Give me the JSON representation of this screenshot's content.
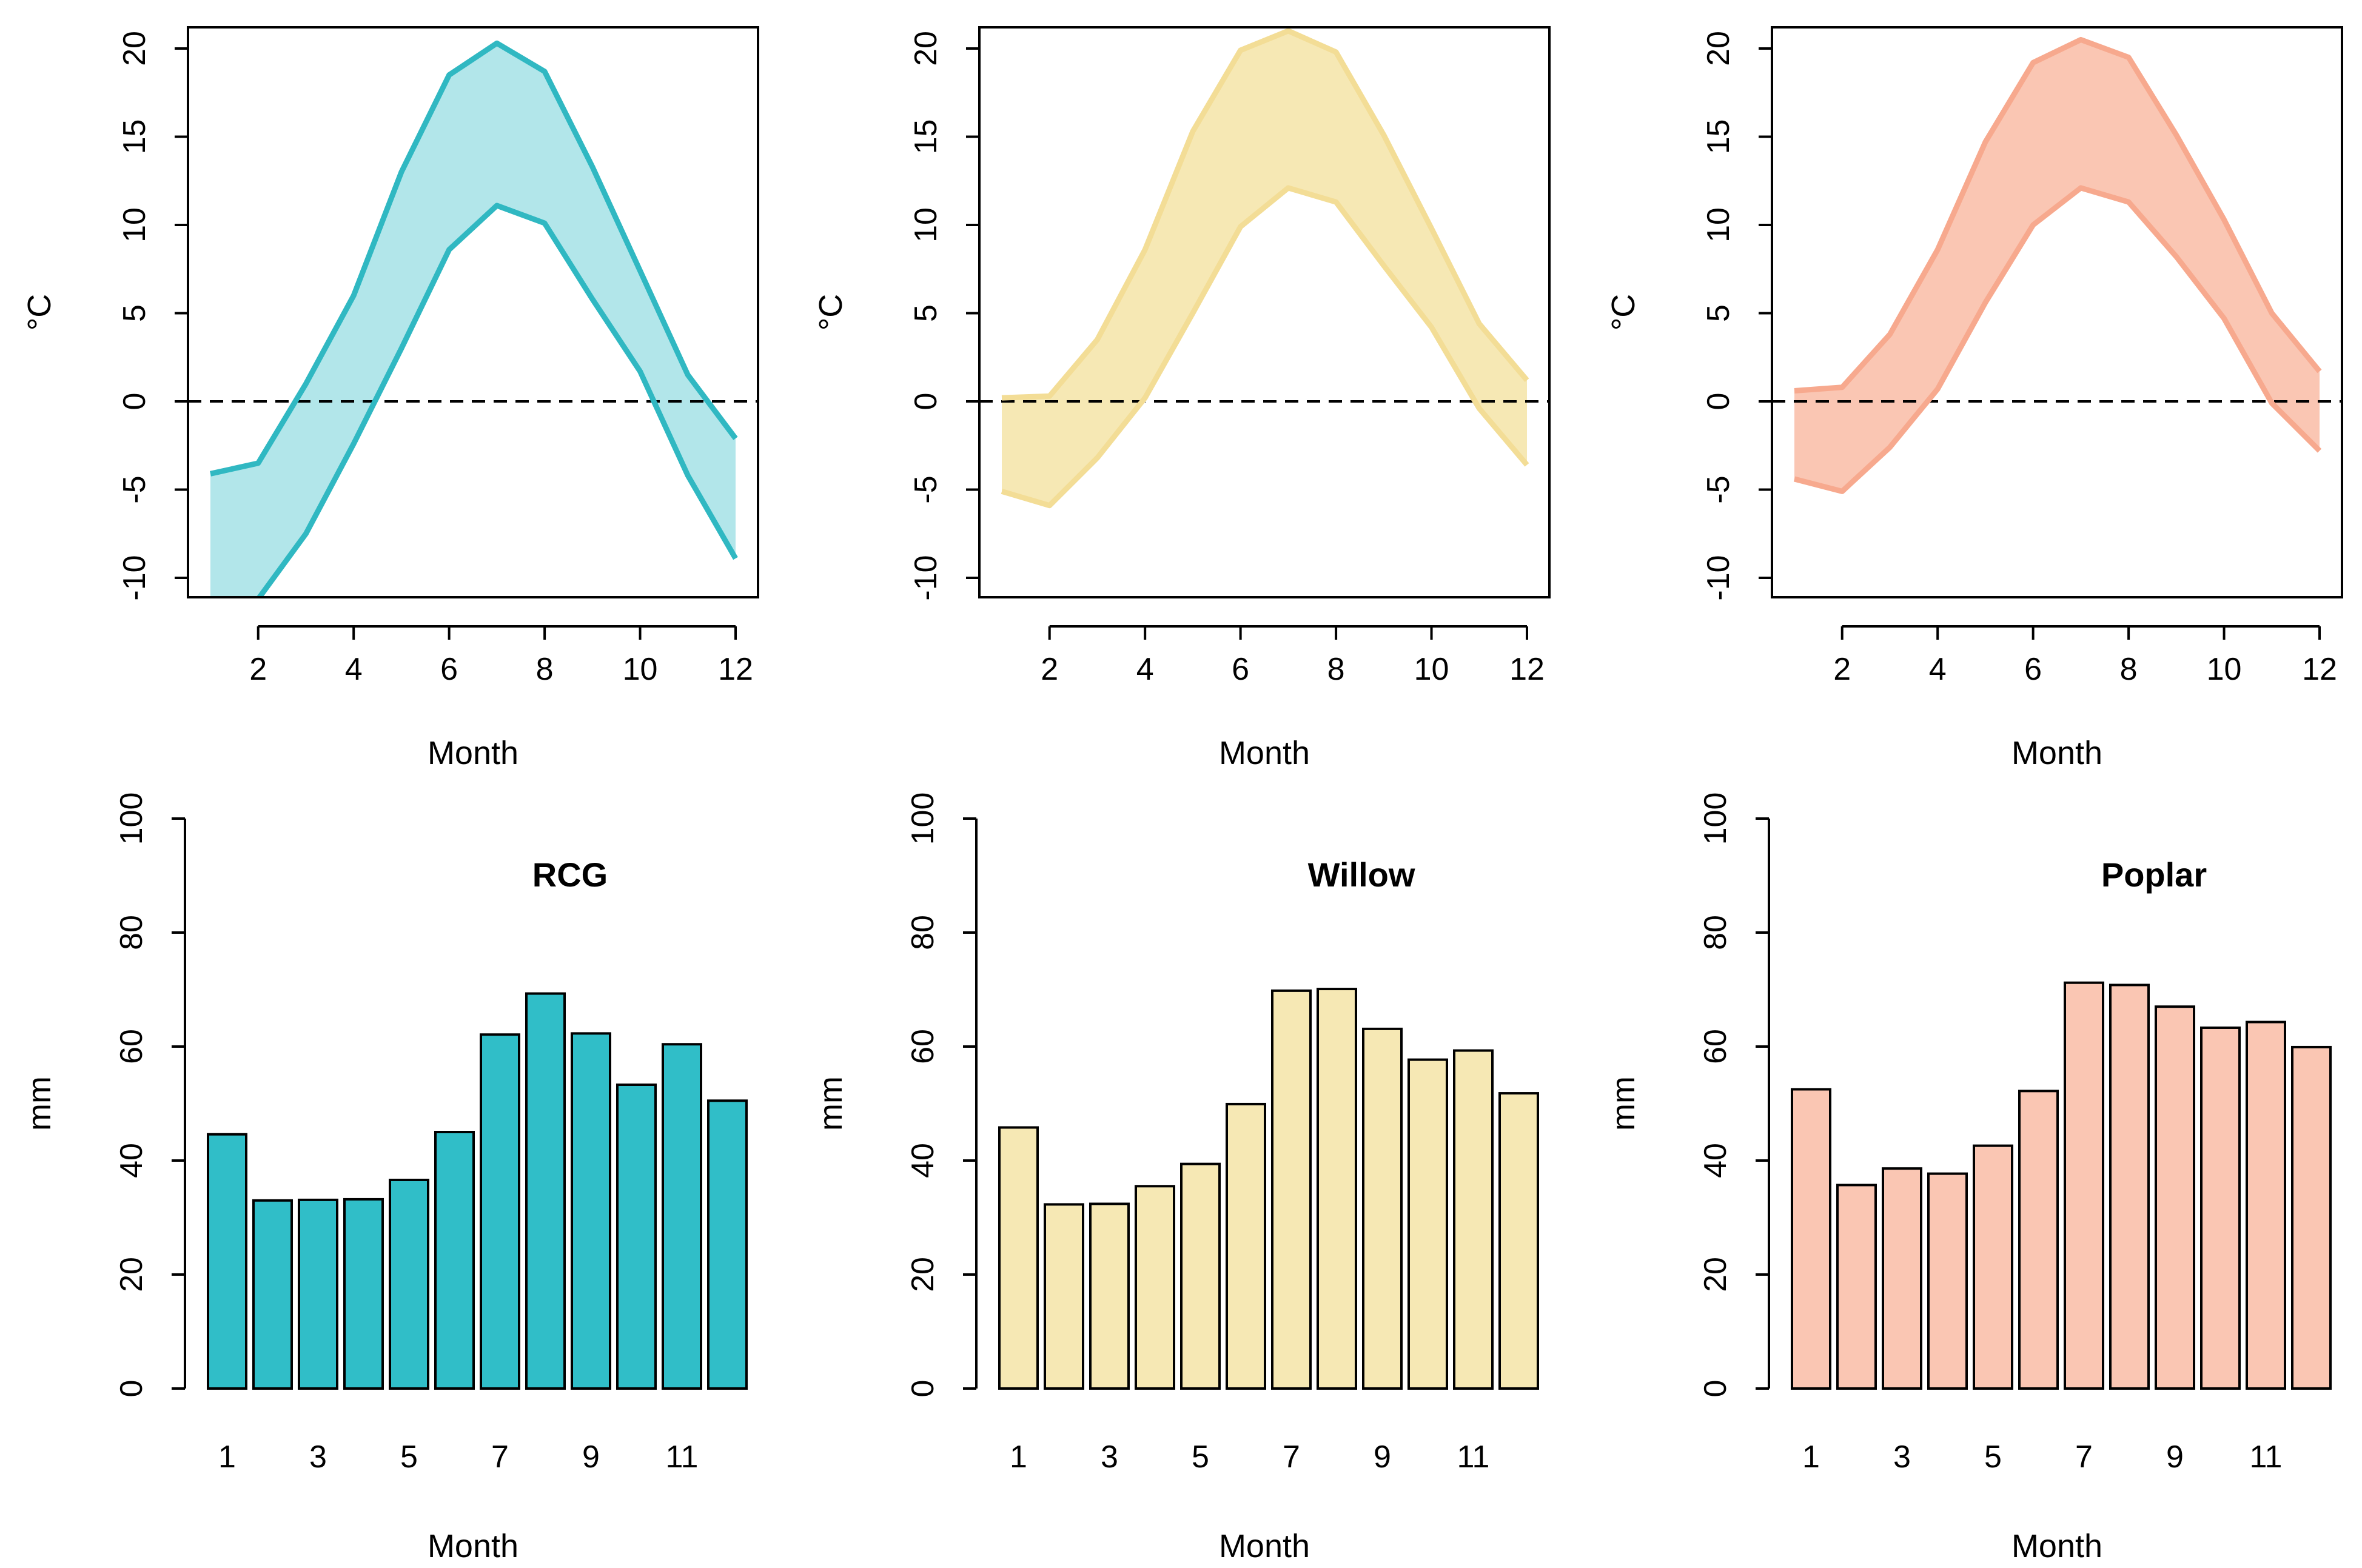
{
  "chart_data": [
    {
      "type": "area",
      "ylabel": "°C",
      "xlabel": "Month",
      "xlim": [
        1,
        12
      ],
      "ylim": [
        -10,
        20
      ],
      "x_ticks": [
        2,
        4,
        6,
        8,
        10,
        12
      ],
      "y_ticks": [
        -10,
        -5,
        0,
        5,
        10,
        15,
        20
      ],
      "reference_line": 0,
      "color": "#30b8c2",
      "fill": "#b2e6ea",
      "x": [
        1,
        2,
        3,
        4,
        5,
        6,
        7,
        8,
        9,
        10,
        11,
        12
      ],
      "series": [
        {
          "values": [
            -4.1,
            -3.5,
            1.0,
            6.0,
            13.0,
            18.5,
            20.3,
            18.7,
            13.3,
            7.4,
            1.5,
            -2.1
          ]
        },
        {
          "values": [
            -11.5,
            -11.2,
            -7.5,
            -2.4,
            3.0,
            8.6,
            11.1,
            10.1,
            5.8,
            1.7,
            -4.2,
            -8.9
          ]
        }
      ]
    },
    {
      "type": "area",
      "ylabel": "°C",
      "xlabel": "Month",
      "xlim": [
        1,
        12
      ],
      "ylim": [
        -10,
        20
      ],
      "x_ticks": [
        2,
        4,
        6,
        8,
        10,
        12
      ],
      "y_ticks": [
        -10,
        -5,
        0,
        5,
        10,
        15,
        20
      ],
      "reference_line": 0,
      "color": "#f3dd96",
      "fill": "#f6e8b4",
      "x": [
        1,
        2,
        3,
        4,
        5,
        6,
        7,
        8,
        9,
        10,
        11,
        12
      ],
      "series": [
        {
          "values": [
            0.2,
            0.3,
            3.5,
            8.6,
            15.3,
            19.9,
            21.0,
            19.8,
            15.1,
            9.8,
            4.4,
            1.2
          ]
        },
        {
          "values": [
            -5.1,
            -5.9,
            -3.2,
            0.2,
            5.0,
            9.9,
            12.1,
            11.3,
            7.7,
            4.2,
            -0.4,
            -3.6
          ]
        }
      ]
    },
    {
      "type": "area",
      "ylabel": "°C",
      "xlabel": "Month",
      "xlim": [
        1,
        12
      ],
      "ylim": [
        -10,
        20
      ],
      "x_ticks": [
        2,
        4,
        6,
        8,
        10,
        12
      ],
      "y_ticks": [
        -10,
        -5,
        0,
        5,
        10,
        15,
        20
      ],
      "reference_line": 0,
      "color": "#f7a98e",
      "fill": "#fac6b3",
      "x": [
        1,
        2,
        3,
        4,
        5,
        6,
        7,
        8,
        9,
        10,
        11,
        12
      ],
      "series": [
        {
          "values": [
            0.6,
            0.8,
            3.8,
            8.6,
            14.7,
            19.2,
            20.5,
            19.5,
            15.1,
            10.3,
            5.0,
            1.7
          ]
        },
        {
          "values": [
            -4.4,
            -5.1,
            -2.6,
            0.7,
            5.6,
            10.0,
            12.1,
            11.3,
            8.2,
            4.7,
            -0.1,
            -2.8
          ]
        }
      ]
    },
    {
      "type": "bar",
      "title": "RCG",
      "ylabel": "mm",
      "xlabel": "Month",
      "ylim": [
        0,
        100
      ],
      "y_ticks": [
        0,
        20,
        40,
        60,
        80,
        100
      ],
      "categories": [
        "1",
        "2",
        "3",
        "4",
        "5",
        "6",
        "7",
        "8",
        "9",
        "10",
        "11",
        "12"
      ],
      "x_tick_labels": [
        "1",
        "3",
        "5",
        "7",
        "9",
        "11"
      ],
      "color": "#30bec8",
      "values": [
        44.6,
        33.0,
        33.1,
        33.2,
        36.6,
        45.0,
        62.1,
        69.3,
        62.3,
        53.3,
        60.4,
        50.5
      ]
    },
    {
      "type": "bar",
      "title": "Willow",
      "ylabel": "mm",
      "xlabel": "Month",
      "ylim": [
        0,
        100
      ],
      "y_ticks": [
        0,
        20,
        40,
        60,
        80,
        100
      ],
      "categories": [
        "1",
        "2",
        "3",
        "4",
        "5",
        "6",
        "7",
        "8",
        "9",
        "10",
        "11",
        "12"
      ],
      "x_tick_labels": [
        "1",
        "3",
        "5",
        "7",
        "9",
        "11"
      ],
      "color": "#f6e8b4",
      "values": [
        45.8,
        32.3,
        32.4,
        35.5,
        39.4,
        49.9,
        69.8,
        70.1,
        63.1,
        57.7,
        59.3,
        51.8
      ]
    },
    {
      "type": "bar",
      "title": "Poplar",
      "ylabel": "mm",
      "xlabel": "Month",
      "ylim": [
        0,
        100
      ],
      "y_ticks": [
        0,
        20,
        40,
        60,
        80,
        100
      ],
      "categories": [
        "1",
        "2",
        "3",
        "4",
        "5",
        "6",
        "7",
        "8",
        "9",
        "10",
        "11",
        "12"
      ],
      "x_tick_labels": [
        "1",
        "3",
        "5",
        "7",
        "9",
        "11"
      ],
      "color": "#fac6b3",
      "values": [
        52.5,
        35.7,
        38.6,
        37.7,
        42.6,
        52.2,
        71.2,
        70.8,
        67.0,
        63.3,
        64.3,
        59.9
      ]
    }
  ]
}
